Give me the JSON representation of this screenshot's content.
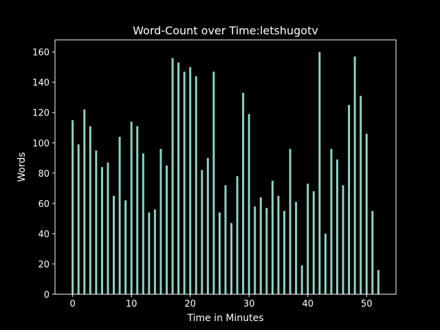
{
  "colors": {
    "background": "#000000",
    "bar": "#8dd3c7",
    "foreground": "#ffffff"
  },
  "chart_data": {
    "type": "bar",
    "title": "Word-Count over Time:letshugotv",
    "xlabel": "Time in Minutes",
    "ylabel": "Words",
    "xlim": [
      -3.0,
      55.0
    ],
    "ylim": [
      0,
      168
    ],
    "grid": false,
    "x_ticks": [
      0,
      10,
      20,
      30,
      40,
      50
    ],
    "y_ticks": [
      0,
      20,
      40,
      60,
      80,
      100,
      120,
      140,
      160
    ],
    "x": [
      0,
      1,
      2,
      3,
      4,
      5,
      6,
      7,
      8,
      9,
      10,
      11,
      12,
      13,
      14,
      15,
      16,
      17,
      18,
      19,
      20,
      21,
      22,
      23,
      24,
      25,
      26,
      27,
      28,
      29,
      30,
      31,
      32,
      33,
      34,
      35,
      36,
      37,
      38,
      39,
      40,
      41,
      42,
      43,
      44,
      45,
      46,
      47,
      48,
      49,
      50,
      51,
      52
    ],
    "values": [
      115,
      99,
      122,
      111,
      95,
      84,
      87,
      65,
      104,
      62,
      114,
      111,
      93,
      54,
      56,
      96,
      85,
      156,
      153,
      147,
      150,
      144,
      82,
      90,
      147,
      54,
      72,
      47,
      78,
      133,
      119,
      58,
      64,
      57,
      75,
      65,
      55,
      96,
      61,
      19,
      73,
      68,
      160,
      40,
      96,
      89,
      72,
      125,
      157,
      131,
      106,
      55,
      16
    ]
  }
}
